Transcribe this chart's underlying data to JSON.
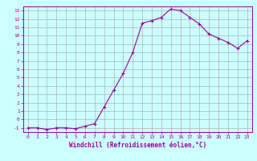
{
  "hours": [
    0,
    1,
    2,
    3,
    4,
    5,
    6,
    7,
    8,
    9,
    10,
    11,
    12,
    13,
    14,
    15,
    16,
    17,
    18,
    19,
    20,
    21,
    22,
    23
  ],
  "wc": [
    -1,
    -1,
    -1.2,
    -1,
    -1,
    -1.1,
    -0.8,
    -0.5,
    1.5,
    3.5,
    5.5,
    8.0,
    11.5,
    11.8,
    12.2,
    13.2,
    13.0,
    12.2,
    11.4,
    10.2,
    9.7,
    9.2,
    8.5,
    9.4
  ],
  "line_color": "#990099",
  "marker_color": "#990099",
  "bg_color": "#ccffff",
  "grid_color": "#aaaaaa",
  "axis_color": "#990099",
  "xlabel": "Windchill (Refroidissement éolien,°C)",
  "xlim": [
    -0.5,
    23.5
  ],
  "ylim": [
    -1.5,
    13.5
  ],
  "yticks": [
    -1,
    0,
    1,
    2,
    3,
    4,
    5,
    6,
    7,
    8,
    9,
    10,
    11,
    12,
    13
  ],
  "xticks": [
    0,
    1,
    2,
    3,
    4,
    5,
    6,
    7,
    8,
    9,
    10,
    11,
    12,
    13,
    14,
    15,
    16,
    17,
    18,
    19,
    20,
    21,
    22,
    23
  ]
}
